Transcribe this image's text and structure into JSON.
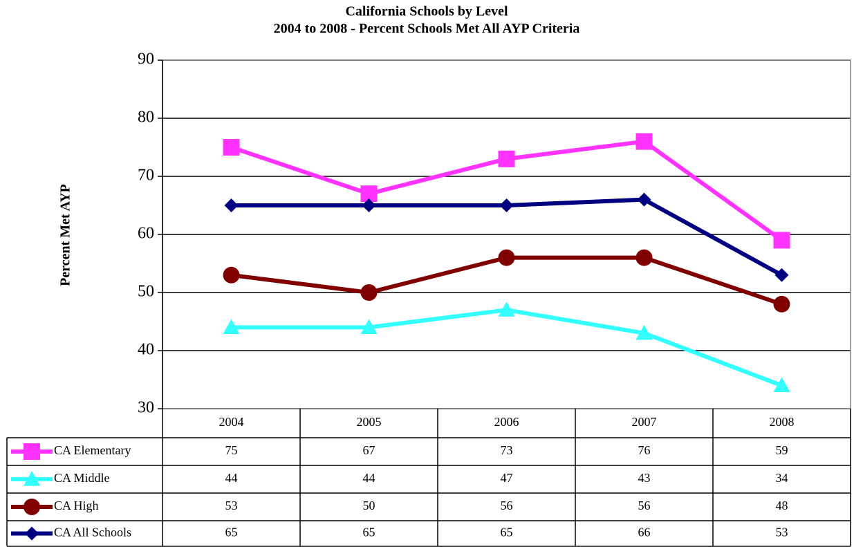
{
  "chart_data": {
    "type": "line",
    "title": "California Schools by Level",
    "subtitle": "2004 to 2008 - Percent Schools Met All AYP Criteria",
    "y_label": "Percent Met AYP",
    "categories": [
      "2004",
      "2005",
      "2006",
      "2007",
      "2008"
    ],
    "series": [
      {
        "name": "CA Elementary",
        "color": "#ff33ff",
        "marker": "square",
        "values": [
          75,
          67,
          73,
          76,
          59
        ]
      },
      {
        "name": "CA Middle",
        "color": "#33ffff",
        "marker": "triangle",
        "values": [
          44,
          44,
          47,
          43,
          34
        ]
      },
      {
        "name": "CA High",
        "color": "#800000",
        "marker": "circle",
        "values": [
          53,
          50,
          56,
          56,
          48
        ]
      },
      {
        "name": "CA All Schools",
        "color": "#000080",
        "marker": "diamond",
        "values": [
          65,
          65,
          65,
          66,
          53
        ]
      }
    ],
    "ylim": [
      30,
      90
    ],
    "yticks": [
      30,
      40,
      50,
      60,
      70,
      80,
      90
    ],
    "grid": true,
    "data_table": true
  }
}
